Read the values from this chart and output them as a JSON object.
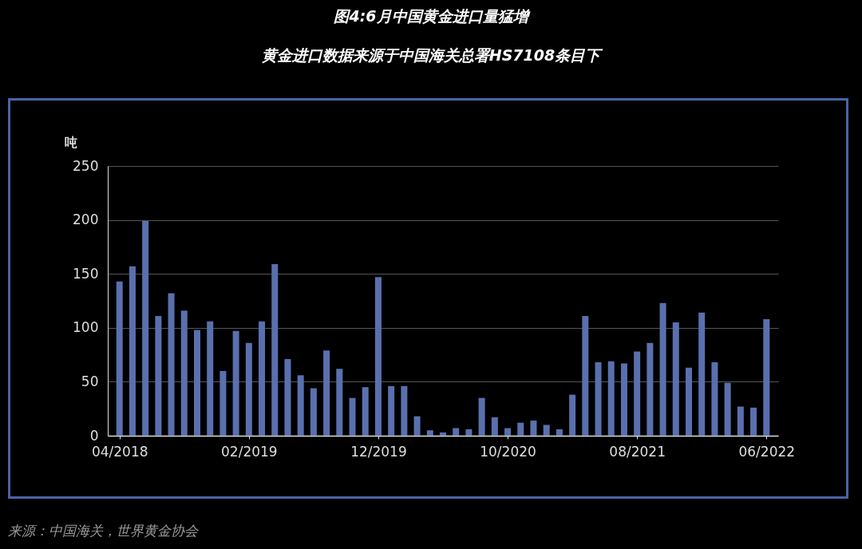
{
  "chart_data": {
    "type": "bar",
    "title": "图4:6月中国黄金进口量猛增",
    "subtitle": "黄金进口数据来源于中国海关总署HS7108条目下",
    "ylabel": "吨",
    "categories": [
      "04/2018",
      null,
      null,
      null,
      null,
      null,
      null,
      null,
      null,
      null,
      "02/2019",
      null,
      null,
      null,
      null,
      null,
      null,
      null,
      null,
      null,
      "12/2019",
      null,
      null,
      null,
      null,
      null,
      null,
      null,
      null,
      null,
      "10/2020",
      null,
      null,
      null,
      null,
      null,
      null,
      null,
      null,
      null,
      "08/2021",
      null,
      null,
      null,
      null,
      null,
      null,
      null,
      null,
      null,
      "06/2022"
    ],
    "values": [
      143,
      157,
      199,
      111,
      132,
      116,
      98,
      106,
      60,
      97,
      86,
      106,
      159,
      71,
      56,
      44,
      79,
      62,
      35,
      45,
      147,
      46,
      46,
      18,
      5,
      3,
      7,
      6,
      35,
      17,
      7,
      12,
      14,
      10,
      6,
      38,
      111,
      68,
      69,
      67,
      78,
      86,
      123,
      105,
      63,
      114,
      68,
      49,
      27,
      26,
      108
    ],
    "color": "#5a70ae",
    "ylim": [
      0,
      250
    ],
    "yticks": [
      0,
      50,
      100,
      150,
      200,
      250
    ],
    "grid": "y",
    "annotations": [
      "来源：中国海关，世界黄金协会"
    ]
  }
}
